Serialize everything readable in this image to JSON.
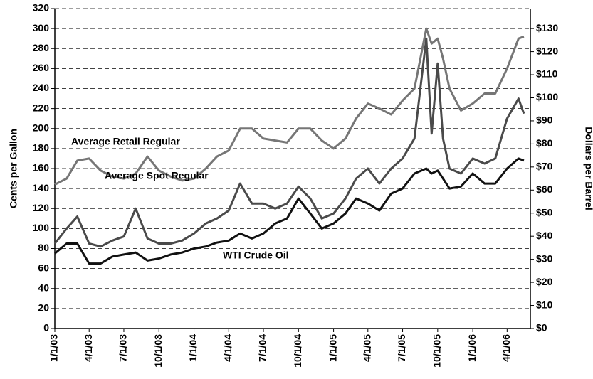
{
  "chart_data": {
    "type": "line",
    "y_label": "Cents per Gallon",
    "y2_label": "Dollars per Barrel",
    "x": [
      "1/1/03",
      "2/1/03",
      "3/1/03",
      "4/1/03",
      "5/1/03",
      "6/1/03",
      "7/1/03",
      "8/1/03",
      "9/1/03",
      "10/1/03",
      "11/1/03",
      "12/1/03",
      "1/1/04",
      "2/1/04",
      "3/1/04",
      "4/1/04",
      "5/1/04",
      "6/1/04",
      "7/1/04",
      "8/1/04",
      "9/1/04",
      "10/1/04",
      "11/1/04",
      "12/1/04",
      "1/1/05",
      "2/1/05",
      "3/1/05",
      "4/1/05",
      "5/1/05",
      "6/1/05",
      "7/1/05",
      "8/1/05",
      "9/1/05",
      "9/15/05",
      "10/1/05",
      "10/15/05",
      "11/1/05",
      "12/1/05",
      "1/1/06",
      "2/1/06",
      "3/1/06",
      "4/1/06",
      "5/1/06",
      "5/15/06"
    ],
    "series": [
      {
        "name": "Average Retail Regular",
        "color": "#767676",
        "values": [
          144,
          150,
          168,
          170,
          158,
          152,
          150,
          155,
          172,
          158,
          152,
          148,
          150,
          160,
          172,
          178,
          200,
          200,
          190,
          188,
          186,
          200,
          200,
          188,
          180,
          190,
          210,
          225,
          220,
          214,
          228,
          240,
          300,
          285,
          290,
          270,
          240,
          218,
          225,
          235,
          235,
          260,
          290,
          292
        ]
      },
      {
        "name": "Average Spot Regular",
        "color": "#4a4a4a",
        "values": [
          85,
          100,
          112,
          85,
          82,
          88,
          92,
          120,
          90,
          85,
          85,
          88,
          95,
          105,
          110,
          118,
          145,
          125,
          125,
          120,
          125,
          142,
          130,
          110,
          115,
          130,
          150,
          160,
          145,
          160,
          170,
          190,
          290,
          195,
          265,
          190,
          160,
          155,
          170,
          165,
          170,
          210,
          230,
          215
        ]
      },
      {
        "name": "WTI Crude Oil",
        "color": "#111111",
        "values": [
          75,
          85,
          85,
          65,
          65,
          72,
          74,
          76,
          68,
          70,
          74,
          76,
          80,
          82,
          86,
          88,
          95,
          90,
          95,
          105,
          110,
          130,
          115,
          100,
          105,
          115,
          130,
          125,
          118,
          135,
          140,
          155,
          160,
          155,
          158,
          150,
          140,
          142,
          155,
          145,
          145,
          160,
          170,
          168
        ]
      }
    ],
    "xlim": [
      "1/1/03",
      "6/1/06"
    ],
    "xticks": [
      "1/1/03",
      "4/1/03",
      "7/1/03",
      "10/1/03",
      "1/1/04",
      "4/1/04",
      "7/1/04",
      "10/1/04",
      "1/1/05",
      "4/1/05",
      "7/1/05",
      "10/1/05",
      "1/1/06",
      "4/1/06"
    ],
    "ylim": [
      0,
      320
    ],
    "yticks": [
      0,
      20,
      40,
      60,
      80,
      100,
      120,
      140,
      160,
      180,
      200,
      220,
      240,
      260,
      280,
      300,
      320
    ],
    "y2lim": [
      0,
      138.67
    ],
    "y2ticks": [
      {
        "value": 0,
        "label": "$0"
      },
      {
        "value": 10,
        "label": "$10"
      },
      {
        "value": 20,
        "label": "$20"
      },
      {
        "value": 30,
        "label": "$30"
      },
      {
        "value": 40,
        "label": "$40"
      },
      {
        "value": 50,
        "label": "$50"
      },
      {
        "value": 60,
        "label": "$60"
      },
      {
        "value": 70,
        "label": "$70"
      },
      {
        "value": 80,
        "label": "$80"
      },
      {
        "value": 90,
        "label": "$90"
      },
      {
        "value": 100,
        "label": "$100"
      },
      {
        "value": 110,
        "label": "$110"
      },
      {
        "value": 120,
        "label": "$120"
      },
      {
        "value": 130,
        "label": "$130"
      }
    ],
    "grid": true
  }
}
